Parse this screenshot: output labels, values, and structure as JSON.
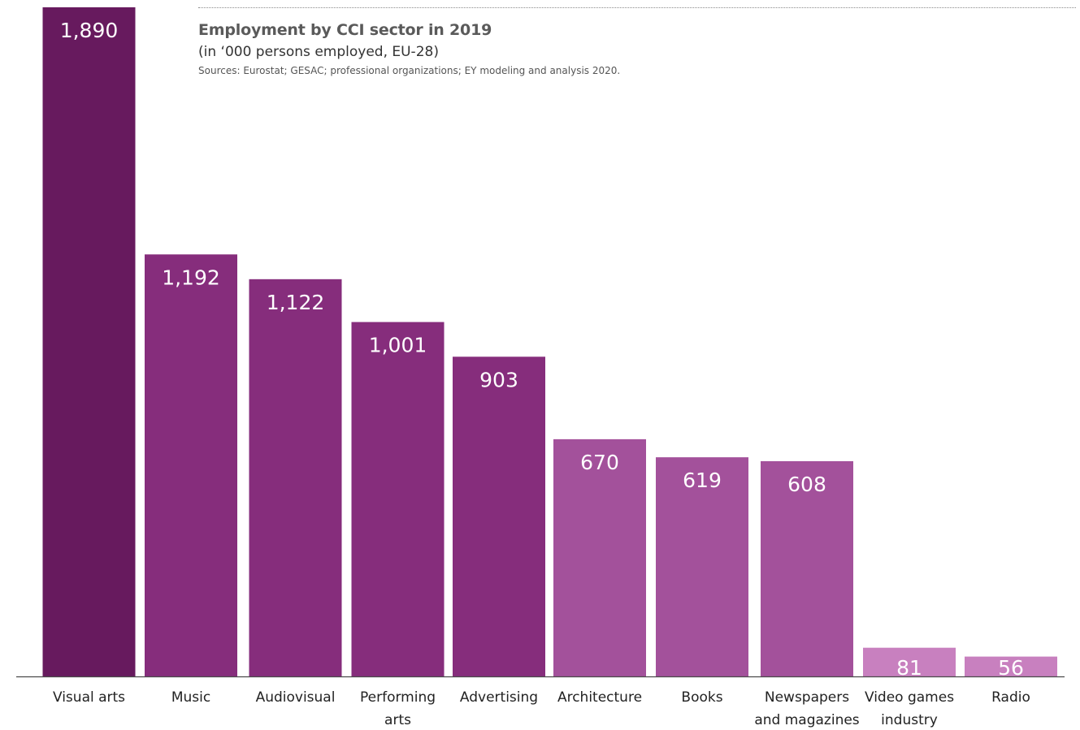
{
  "chart_data": {
    "type": "bar",
    "title": "Employment by CCI sector in 2019",
    "subtitle": "(in ‘000 persons employed, EU-28)",
    "source": "Sources: Eurostat; GESAC; professional organizations; EY modeling and analysis 2020.",
    "xlabel": "",
    "ylabel": "",
    "ylim": [
      0,
      1890
    ],
    "grid": false,
    "categories": [
      [
        "Visual arts"
      ],
      [
        "Music"
      ],
      [
        "Audiovisual"
      ],
      [
        "Performing",
        "arts"
      ],
      [
        "Advertising"
      ],
      [
        "Architecture"
      ],
      [
        "Books"
      ],
      [
        "Newspapers",
        "and magazines"
      ],
      [
        "Video games",
        "industry"
      ],
      [
        "Radio"
      ]
    ],
    "values": [
      1890,
      1192,
      1122,
      1001,
      903,
      670,
      619,
      608,
      81,
      56
    ],
    "value_labels": [
      "1,890",
      "1,192",
      "1,122",
      "1,001",
      "903",
      "670",
      "619",
      "608",
      "81",
      "56"
    ],
    "colors": [
      "#671a5e",
      "#862d7c",
      "#862d7c",
      "#862d7c",
      "#862d7c",
      "#a3519b",
      "#a3519b",
      "#a3519b",
      "#c880bf",
      "#c880bf"
    ]
  }
}
